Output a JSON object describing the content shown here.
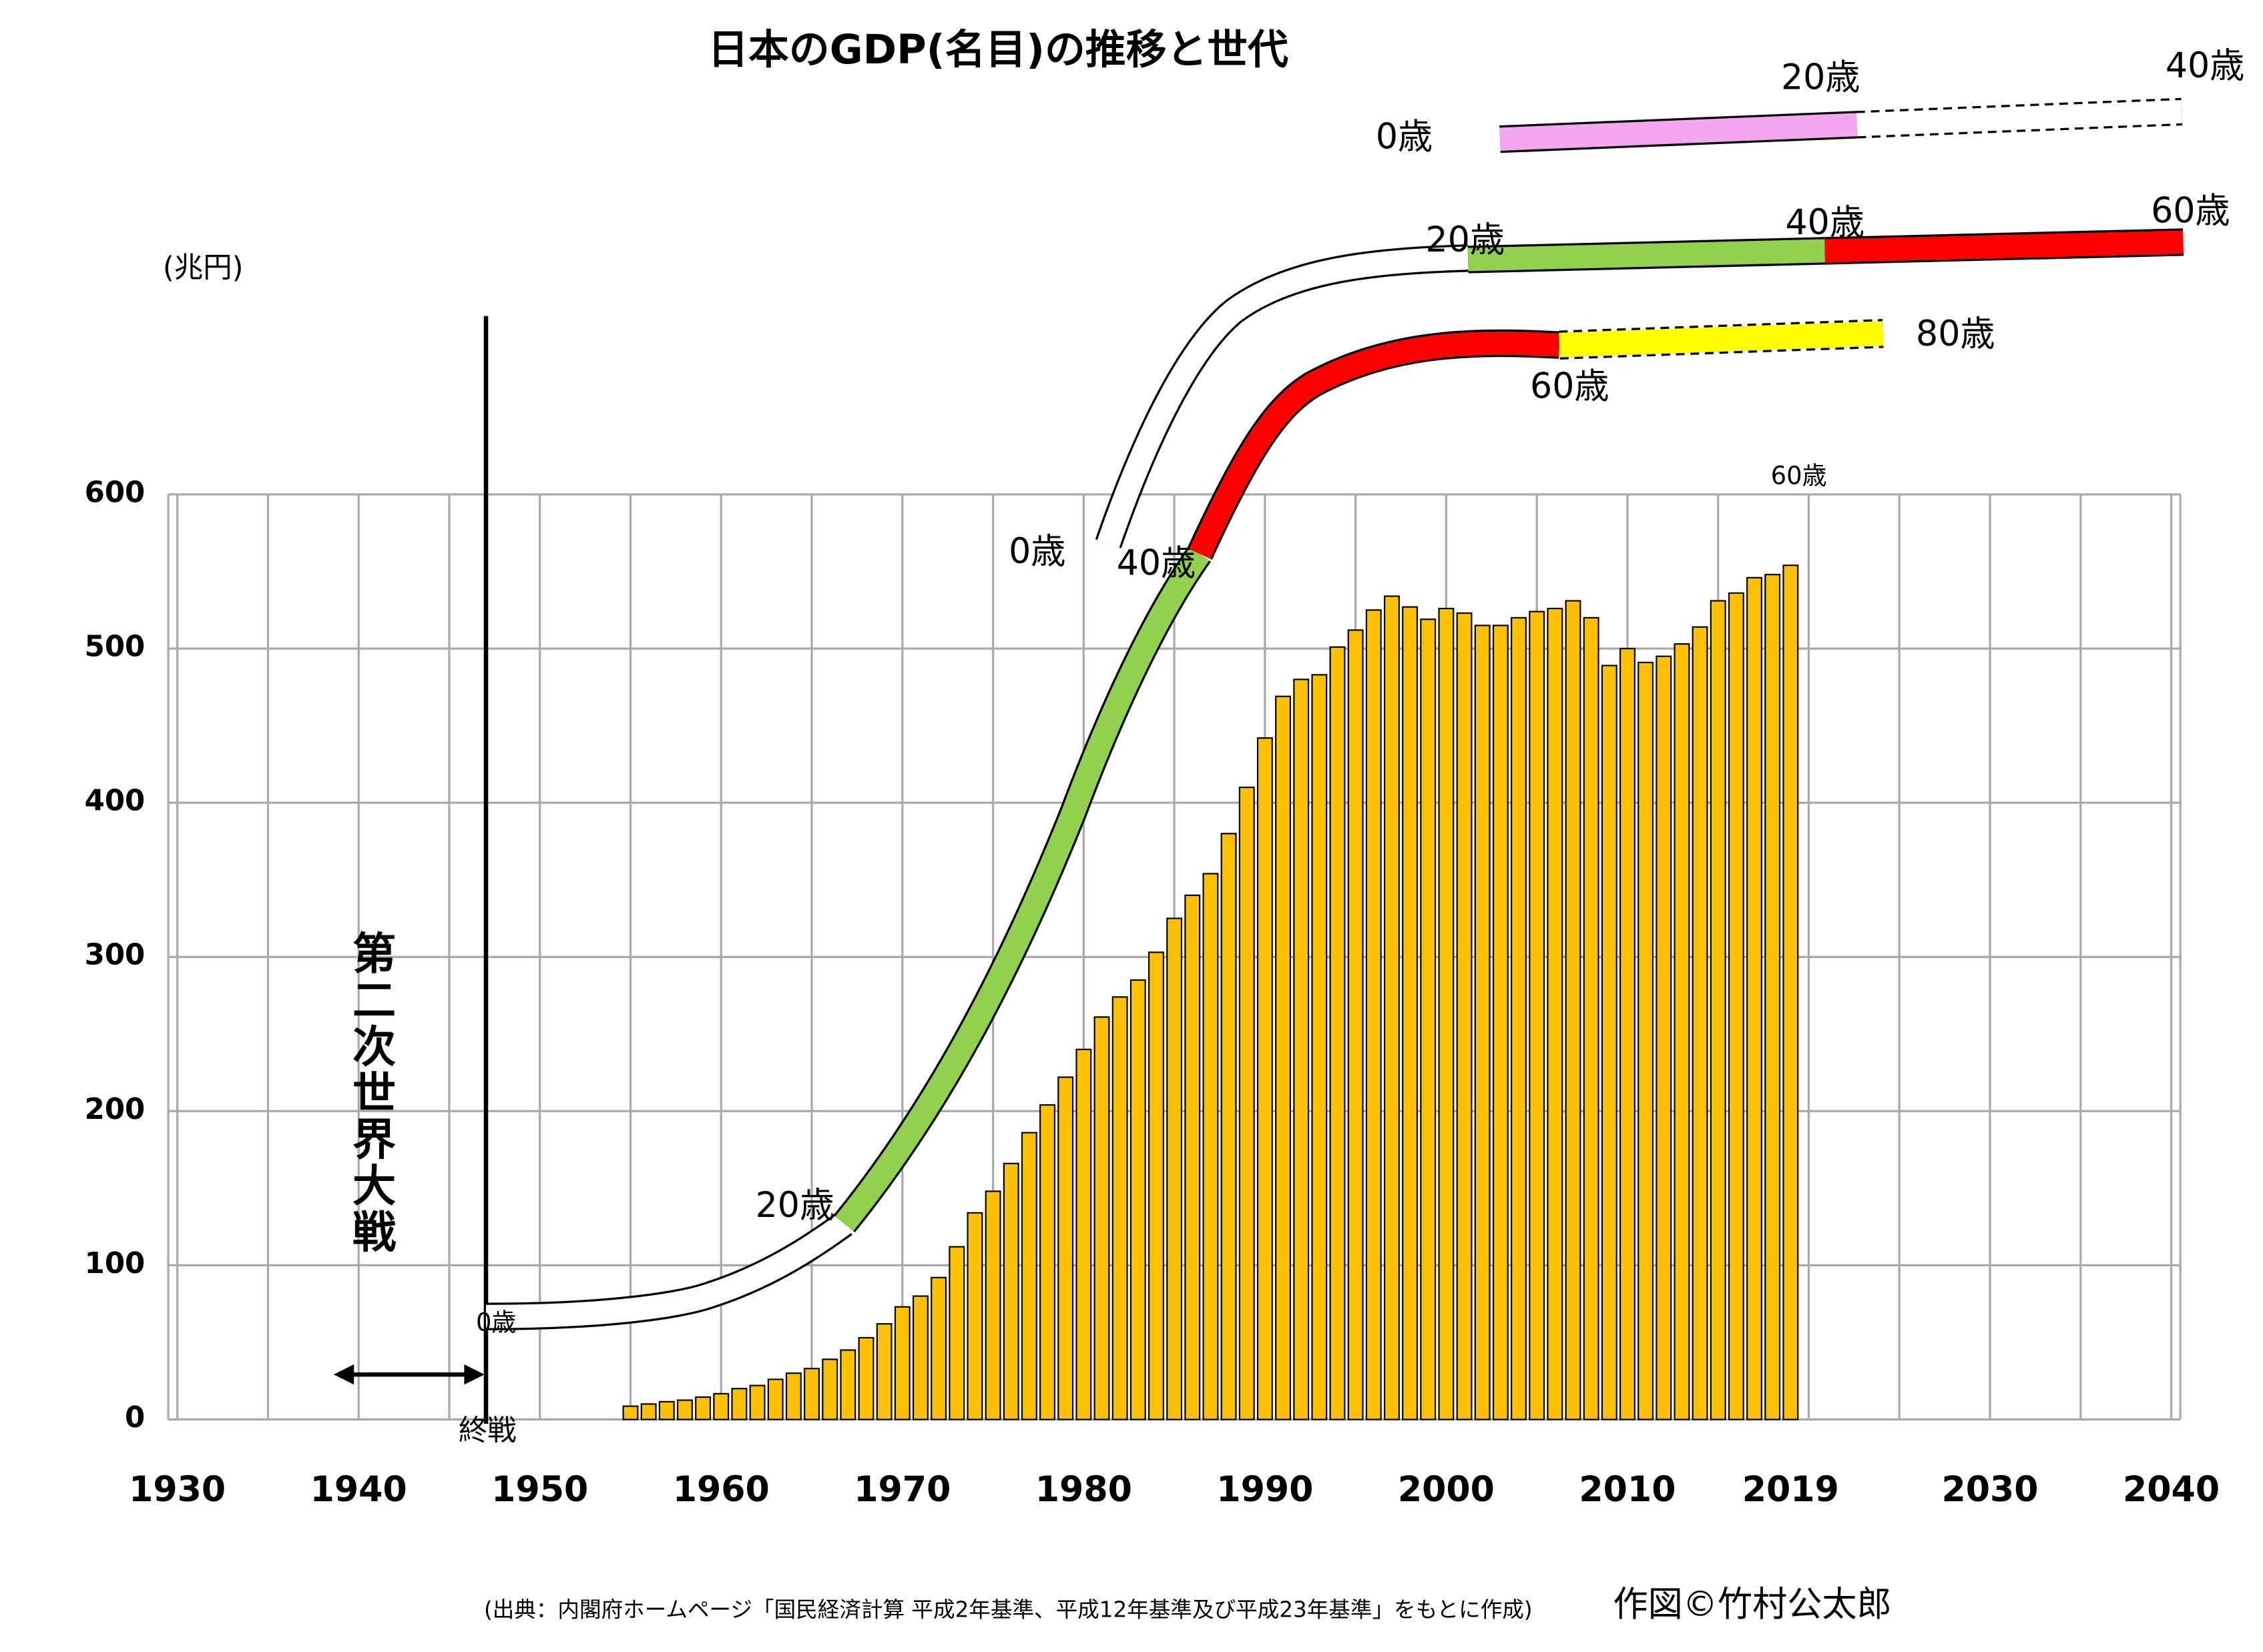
{
  "chart_data": {
    "type": "bar",
    "title": "日本のGDP(名目)の推移と世代",
    "y_unit": "(兆円)",
    "war_label": "第二次世界大戦",
    "war_end_label": "終戦",
    "source": "(出典：内閣府ホームページ「国民経済計算 平成2年基準、平成12年基準及び平成23年基準」をもとに作成)",
    "credit": "作図©竹村公太郎",
    "age_labels": [
      "0歳",
      "20歳",
      "40歳",
      "0歳",
      "60歳",
      "60歳",
      "80歳",
      "20歳",
      "40歳",
      "60歳",
      "0歳",
      "20歳",
      "40歳"
    ],
    "x": [
      1955,
      1956,
      1957,
      1958,
      1959,
      1960,
      1961,
      1962,
      1963,
      1964,
      1965,
      1966,
      1967,
      1968,
      1969,
      1970,
      1971,
      1972,
      1973,
      1974,
      1975,
      1976,
      1977,
      1978,
      1979,
      1980,
      1981,
      1982,
      1983,
      1984,
      1985,
      1986,
      1987,
      1988,
      1989,
      1990,
      1991,
      1992,
      1993,
      1994,
      1995,
      1996,
      1997,
      1998,
      1999,
      2000,
      2001,
      2002,
      2003,
      2004,
      2005,
      2006,
      2007,
      2008,
      2009,
      2010,
      2011,
      2012,
      2013,
      2014,
      2015,
      2016,
      2017,
      2018,
      2019
    ],
    "values": [
      8.6,
      10,
      11.5,
      12.5,
      14.5,
      16.7,
      20,
      22,
      26,
      30,
      33,
      39,
      45,
      53,
      62,
      73,
      80,
      92,
      112,
      134,
      148,
      166,
      186,
      204,
      222,
      240,
      261,
      274,
      285,
      303,
      325,
      340,
      354,
      380,
      410,
      442,
      469,
      480,
      483,
      501,
      512,
      525,
      534,
      527,
      519,
      526,
      523,
      515,
      515,
      520,
      524,
      526,
      531,
      520,
      489,
      500,
      491,
      495,
      503,
      514,
      531,
      536,
      546,
      548,
      554
    ],
    "color": "#ffc000",
    "xlim": [
      1929.5,
      2040.5
    ],
    "xticks": [
      1930,
      1940,
      1950,
      1960,
      1970,
      1980,
      1990,
      2000,
      2010,
      2019,
      2030,
      2040
    ],
    "ylim": [
      0,
      600
    ],
    "yticks": [
      0,
      100,
      200,
      300,
      400,
      500,
      600
    ],
    "grid": true
  }
}
